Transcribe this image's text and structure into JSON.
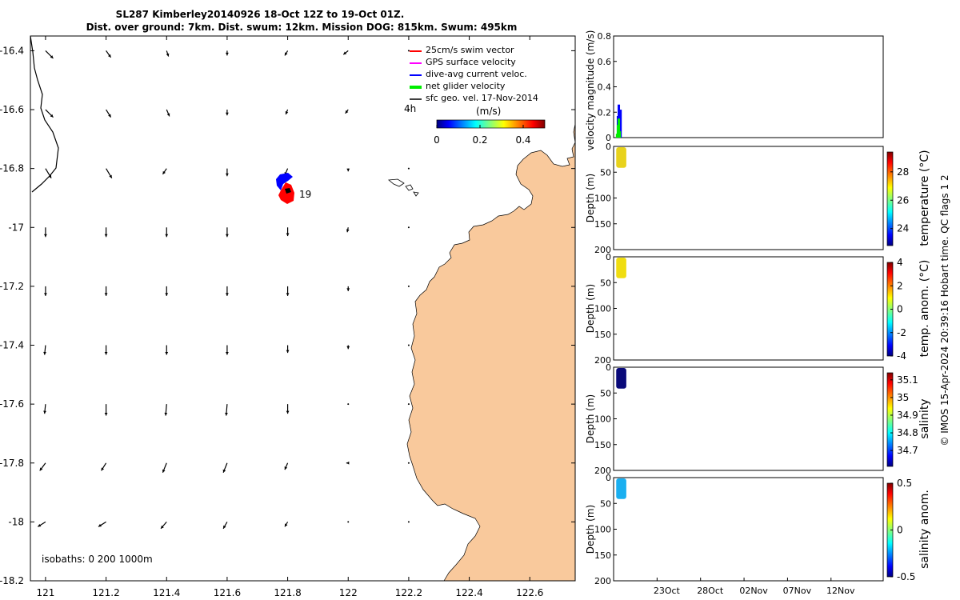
{
  "title_line1": "SL287 Kimberley20140926 18-Oct 12Z to 19-Oct 01Z.",
  "title_line2": "Dist. over ground: 7km. Dist. swum: 12km. Mission DOG: 815km. Swum: 495km",
  "colors": {
    "land": "#F9C99C",
    "swim": "#ff0000",
    "gps": "#ff00ff",
    "dive": "#0000ff",
    "net": "#00ee00",
    "geo": "#000000"
  },
  "chart_data": [
    {
      "type": "vector_map",
      "name": "glider-track-map",
      "xlim": [
        120.95,
        122.75
      ],
      "ylim": [
        -18.2,
        -16.35
      ],
      "x_ticks": [
        121,
        121.2,
        121.4,
        121.6,
        121.8,
        122,
        122.2,
        122.4,
        122.6
      ],
      "x_tick_labels": [
        "121",
        "121.2",
        "121.4",
        "121.6",
        "121.8",
        "122",
        "122.2",
        "122.4",
        "122.6"
      ],
      "y_ticks": [
        -16.4,
        -16.6,
        -16.8,
        -17,
        -17.2,
        -17.4,
        -17.6,
        -17.8,
        -18,
        -18.2
      ],
      "y_tick_labels": [
        "-16.4",
        "-16.6",
        "-16.8",
        "-17",
        "-17.2",
        "-17.4",
        "-17.6",
        "-17.8",
        "-18",
        "-18.2"
      ],
      "legend": {
        "placement": "top-right",
        "entries": [
          {
            "label": "25cm/s swim vector",
            "color": "#ff0000"
          },
          {
            "label": "GPS surface velocity",
            "color": "#ff00ff"
          },
          {
            "label": "dive-avg current veloc.",
            "color": "#0000ff"
          },
          {
            "label": "net glider velocity",
            "color": "#00ee00"
          },
          {
            "label": "sfc geo. vel. 17-Nov-2014",
            "color": "#000000"
          }
        ]
      },
      "time_label": "4h",
      "speed_colorbar": {
        "label": "(m/s)",
        "range": [
          0,
          0.5
        ],
        "ticks": [
          0,
          0.2,
          0.4
        ],
        "tick_labels": [
          "0",
          "0.2",
          "0.4"
        ]
      },
      "glider_label": "19",
      "glider_position": [
        121.73,
        -16.88
      ],
      "isobath_note": "isobaths: 0   200  1000m",
      "geo_vectors": {
        "lons": [
          121,
          121.2,
          121.4,
          121.6,
          121.8,
          122,
          122.2
        ],
        "lats": [
          -16.4,
          -16.6,
          -16.8,
          -17,
          -17.2,
          -17.4,
          -17.6,
          -17.8,
          -18
        ],
        "u_by_row": [
          [
            0.08,
            0.05,
            0.02,
            0.0,
            -0.03,
            -0.05,
            0.0
          ],
          [
            0.08,
            0.05,
            0.03,
            0.0,
            -0.02,
            -0.03,
            0.0
          ],
          [
            0.06,
            0.06,
            -0.04,
            0.0,
            -0.03,
            0.0,
            0.0
          ],
          [
            0.0,
            0.0,
            0.0,
            0.0,
            0.0,
            -0.01,
            0.0
          ],
          [
            0.0,
            0.0,
            0.0,
            0.0,
            0.0,
            0.0,
            0.0
          ],
          [
            -0.01,
            0.0,
            0.0,
            0.0,
            0.0,
            0.0,
            0.0
          ],
          [
            -0.01,
            0.0,
            -0.01,
            -0.01,
            0.0,
            0.0,
            0.0
          ],
          [
            -0.06,
            -0.05,
            -0.04,
            -0.04,
            -0.03,
            -0.02,
            0.0
          ],
          [
            -0.08,
            -0.08,
            -0.06,
            -0.04,
            -0.03,
            0.0,
            0.0
          ]
        ],
        "v_by_row": [
          [
            -0.08,
            -0.07,
            -0.06,
            -0.05,
            -0.05,
            -0.04,
            0.0
          ],
          [
            -0.08,
            -0.08,
            -0.07,
            -0.06,
            -0.05,
            -0.04,
            0.0
          ],
          [
            -0.1,
            -0.1,
            -0.06,
            -0.08,
            -0.07,
            -0.03,
            0.0
          ],
          [
            -0.1,
            -0.1,
            -0.1,
            -0.1,
            -0.09,
            -0.05,
            0.0
          ],
          [
            -0.1,
            -0.1,
            -0.1,
            -0.1,
            -0.1,
            -0.05,
            0.0
          ],
          [
            -0.1,
            -0.1,
            -0.1,
            -0.1,
            -0.08,
            -0.04,
            0.0
          ],
          [
            -0.1,
            -0.12,
            -0.12,
            -0.12,
            -0.1,
            0.0,
            0.0
          ],
          [
            -0.08,
            -0.08,
            -0.1,
            -0.1,
            -0.07,
            0.0,
            0.0
          ],
          [
            -0.05,
            -0.05,
            -0.07,
            -0.07,
            -0.05,
            0.0,
            0.0
          ]
        ]
      }
    },
    {
      "type": "line",
      "name": "velocity-magnitude-panel",
      "ylabel": "velocity magnitude (m/s)",
      "ylim": [
        0,
        0.8
      ],
      "y_ticks": [
        0,
        0.2,
        0.4,
        0.6,
        0.8
      ],
      "y_tick_labels": [
        "0",
        "0.2",
        "0.4",
        "0.6",
        "0.8"
      ],
      "x_days_range": [
        0,
        31
      ],
      "series": [
        {
          "name": "dive-avg current veloc.",
          "color": "#0000ff",
          "days": [
            0.5,
            0.6,
            0.7,
            0.8
          ],
          "values": [
            0.17,
            0.26,
            0.14,
            0.22
          ]
        },
        {
          "name": "net glider velocity",
          "color": "#00ee00",
          "days": [
            0.4,
            0.5,
            0.6,
            0.7
          ],
          "values": [
            0.03,
            0.1,
            0.15,
            0.05
          ]
        }
      ]
    },
    {
      "type": "heatmap",
      "name": "temperature-panel",
      "ylabel": "Depth (m)",
      "ylim": [
        0,
        200
      ],
      "y_ticks": [
        0,
        50,
        100,
        150,
        200
      ],
      "y_tick_labels": [
        "0",
        "50",
        "100",
        "150",
        "200"
      ],
      "colorbar_label": "temperature (°C)",
      "colorbar_range": [
        22.8,
        29.4
      ],
      "colorbar_ticks": [
        24,
        26,
        28
      ],
      "colorbar_tick_labels": [
        "24",
        "26",
        "28"
      ],
      "data_days": [
        0.3,
        1.0
      ],
      "data_depth": [
        0,
        40
      ],
      "data_color": "#E8D21C"
    },
    {
      "type": "heatmap",
      "name": "temp-anomaly-panel",
      "ylabel": "Depth (m)",
      "ylim": [
        0,
        200
      ],
      "y_ticks": [
        0,
        50,
        100,
        150,
        200
      ],
      "y_tick_labels": [
        "0",
        "50",
        "100",
        "150",
        "200"
      ],
      "colorbar_label": "temp. anom. (°C)",
      "colorbar_range": [
        -4,
        4
      ],
      "colorbar_ticks": [
        -4,
        -2,
        0,
        2,
        4
      ],
      "colorbar_tick_labels": [
        "-4",
        "-2",
        "0",
        "2",
        "4"
      ],
      "data_days": [
        0.3,
        1.0
      ],
      "data_depth": [
        0,
        40
      ],
      "data_color": "#F0DD10"
    },
    {
      "type": "heatmap",
      "name": "salinity-panel",
      "ylabel": "Depth (m)",
      "ylim": [
        0,
        200
      ],
      "y_ticks": [
        0,
        50,
        100,
        150,
        200
      ],
      "y_tick_labels": [
        "0",
        "50",
        "100",
        "150",
        "200"
      ],
      "colorbar_label": "salinity",
      "colorbar_range": [
        34.61,
        35.14
      ],
      "colorbar_ticks": [
        34.7,
        34.8,
        34.9,
        35,
        35.1
      ],
      "colorbar_tick_labels": [
        "34.7",
        "34.8",
        "34.9",
        "35",
        "35.1"
      ],
      "data_days": [
        0.3,
        1.0
      ],
      "data_depth": [
        0,
        40
      ],
      "data_color": "#0A0A7A"
    },
    {
      "type": "heatmap",
      "name": "salinity-anomaly-panel",
      "ylabel": "Depth (m)",
      "ylim": [
        0,
        200
      ],
      "y_ticks": [
        0,
        50,
        100,
        150,
        200
      ],
      "y_tick_labels": [
        "0",
        "50",
        "100",
        "150",
        "200"
      ],
      "colorbar_label": "salinity anom.",
      "colorbar_range": [
        -0.5,
        0.5
      ],
      "colorbar_ticks": [
        -0.5,
        0,
        0.5
      ],
      "colorbar_tick_labels": [
        "-0.5",
        "0",
        "0.5"
      ],
      "data_days": [
        0.3,
        1.0
      ],
      "data_depth": [
        0,
        40
      ],
      "data_color": "#1AAFF0",
      "x_ticks_days": [
        5,
        10,
        15,
        20,
        25
      ],
      "x_tick_labels": [
        "23Oct",
        "28Oct",
        "02Nov",
        "07Nov",
        "12Nov"
      ]
    }
  ],
  "footer_credit": "© IMOS 15-Apr-2024 20:39:16 Hobart time. QC flags 1  2"
}
